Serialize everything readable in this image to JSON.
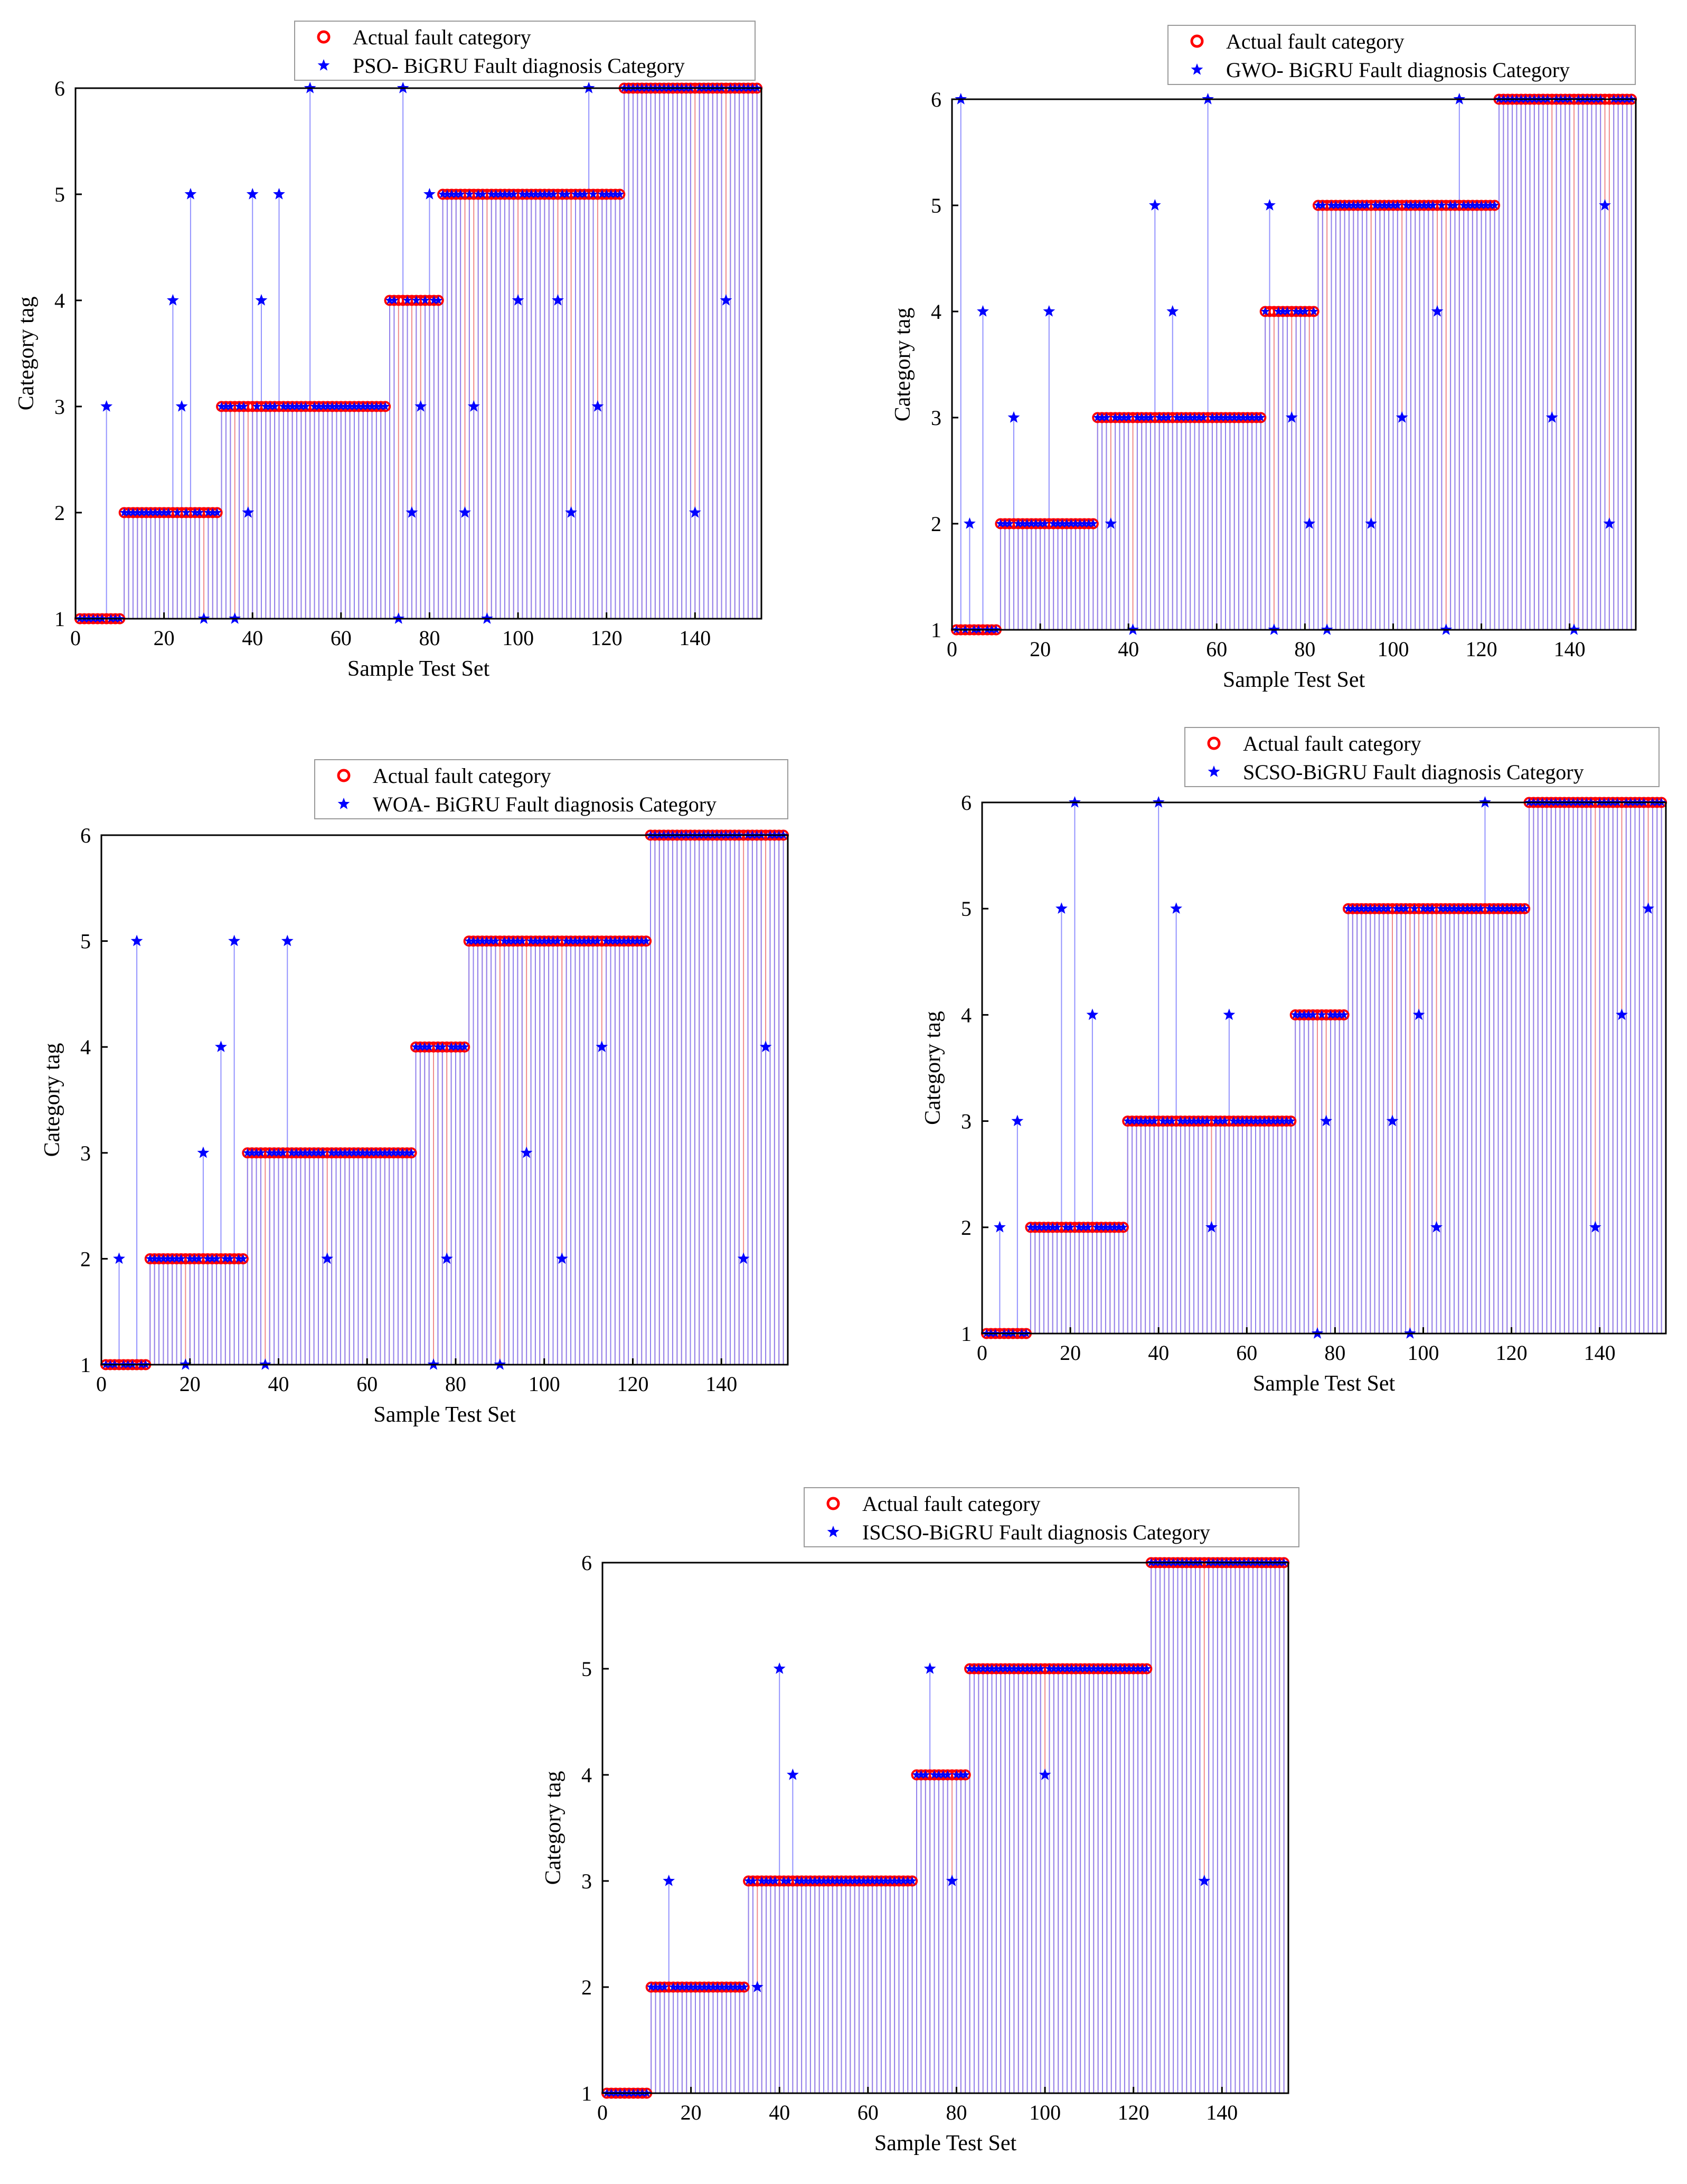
{
  "colors": {
    "actual": "#ff0000",
    "predicted": "#0000ff",
    "stem_actual": "#f08a8a",
    "stem_predicted": "#8080ff",
    "axes": "#000000"
  },
  "icons": {
    "actual_marker": "red-circle-marker-icon",
    "predicted_marker": "blue-star-marker-icon"
  },
  "chart_data": [
    {
      "id": "pso",
      "type": "scatter",
      "title": "",
      "xlabel": "Sample Test Set",
      "ylabel": "Category tag",
      "xlim": [
        0,
        155
      ],
      "ylim": [
        1,
        6
      ],
      "xticks": [
        "0",
        "20",
        "40",
        "60",
        "80",
        "100",
        "120",
        "140"
      ],
      "yticks": [
        "1",
        "2",
        "3",
        "4",
        "5",
        "6"
      ],
      "legend": [
        "Actual fault category",
        "PSO- BiGRU  Fault diagnosis Category"
      ],
      "legend_position": "top",
      "series": [
        {
          "name": "Actual fault category",
          "segments": [
            {
              "from": 1,
              "to": 11,
              "value": 1
            },
            {
              "from": 11,
              "to": 33,
              "value": 2
            },
            {
              "from": 33,
              "to": 71,
              "value": 3
            },
            {
              "from": 71,
              "to": 83,
              "value": 4
            },
            {
              "from": 83,
              "to": 124,
              "value": 5
            },
            {
              "from": 124,
              "to": 155,
              "value": 6
            }
          ]
        },
        {
          "name": "PSO- BiGRU  Fault diagnosis Category",
          "misclassified": [
            [
              7,
              3
            ],
            [
              22,
              4
            ],
            [
              24,
              3
            ],
            [
              26,
              5
            ],
            [
              29,
              1
            ],
            [
              36,
              1
            ],
            [
              39,
              2
            ],
            [
              40,
              5
            ],
            [
              42,
              4
            ],
            [
              46,
              5
            ],
            [
              53,
              6
            ],
            [
              73,
              1
            ],
            [
              74,
              6
            ],
            [
              76,
              2
            ],
            [
              78,
              3
            ],
            [
              80,
              5
            ],
            [
              88,
              2
            ],
            [
              90,
              3
            ],
            [
              93,
              1
            ],
            [
              100,
              4
            ],
            [
              109,
              4
            ],
            [
              112,
              2
            ],
            [
              116,
              6
            ],
            [
              118,
              3
            ],
            [
              140,
              2
            ],
            [
              147,
              4
            ]
          ]
        }
      ]
    },
    {
      "id": "gwo",
      "type": "scatter",
      "title": "",
      "xlabel": "Sample Test Set",
      "ylabel": "Category tag",
      "xlim": [
        0,
        155
      ],
      "ylim": [
        1,
        6
      ],
      "xticks": [
        "0",
        "20",
        "40",
        "60",
        "80",
        "100",
        "120",
        "140"
      ],
      "yticks": [
        "1",
        "2",
        "3",
        "4",
        "5",
        "6"
      ],
      "legend": [
        "Actual fault category",
        "GWO-  BiGRU  Fault diagnosis Category"
      ],
      "legend_position": "top-right",
      "series": [
        {
          "name": "Actual fault category",
          "segments": [
            {
              "from": 1,
              "to": 11,
              "value": 1
            },
            {
              "from": 11,
              "to": 33,
              "value": 2
            },
            {
              "from": 33,
              "to": 71,
              "value": 3
            },
            {
              "from": 71,
              "to": 83,
              "value": 4
            },
            {
              "from": 83,
              "to": 124,
              "value": 5
            },
            {
              "from": 124,
              "to": 155,
              "value": 6
            }
          ]
        },
        {
          "name": "GWO-  BiGRU  Fault diagnosis Category",
          "misclassified": [
            [
              2,
              6
            ],
            [
              4,
              2
            ],
            [
              7,
              4
            ],
            [
              14,
              3
            ],
            [
              22,
              4
            ],
            [
              36,
              2
            ],
            [
              41,
              1
            ],
            [
              46,
              5
            ],
            [
              50,
              4
            ],
            [
              58,
              6
            ],
            [
              72,
              5
            ],
            [
              73,
              1
            ],
            [
              77,
              3
            ],
            [
              81,
              2
            ],
            [
              85,
              1
            ],
            [
              95,
              2
            ],
            [
              102,
              3
            ],
            [
              110,
              4
            ],
            [
              112,
              1
            ],
            [
              115,
              6
            ],
            [
              136,
              3
            ],
            [
              141,
              1
            ],
            [
              148,
              5
            ],
            [
              149,
              2
            ]
          ]
        }
      ]
    },
    {
      "id": "woa",
      "type": "scatter",
      "title": "",
      "xlabel": "Sample Test Set",
      "ylabel": "Category tag",
      "xlim": [
        0,
        155
      ],
      "ylim": [
        1,
        6
      ],
      "xticks": [
        "0",
        "20",
        "40",
        "60",
        "80",
        "100",
        "120",
        "140"
      ],
      "yticks": [
        "1",
        "2",
        "3",
        "4",
        "5",
        "6"
      ],
      "legend": [
        "Actual fault category",
        "WOA-  BiGRU  Fault diagnosis Category"
      ],
      "legend_position": "top-right",
      "series": [
        {
          "name": "Actual fault category",
          "segments": [
            {
              "from": 1,
              "to": 11,
              "value": 1
            },
            {
              "from": 11,
              "to": 33,
              "value": 2
            },
            {
              "from": 33,
              "to": 71,
              "value": 3
            },
            {
              "from": 71,
              "to": 83,
              "value": 4
            },
            {
              "from": 83,
              "to": 124,
              "value": 5
            },
            {
              "from": 124,
              "to": 155,
              "value": 6
            }
          ]
        },
        {
          "name": "WOA-  BiGRU  Fault diagnosis Category",
          "misclassified": [
            [
              4,
              2
            ],
            [
              8,
              5
            ],
            [
              19,
              1
            ],
            [
              23,
              3
            ],
            [
              27,
              4
            ],
            [
              30,
              5
            ],
            [
              37,
              1
            ],
            [
              42,
              5
            ],
            [
              51,
              2
            ],
            [
              75,
              1
            ],
            [
              78,
              2
            ],
            [
              90,
              1
            ],
            [
              96,
              3
            ],
            [
              104,
              2
            ],
            [
              113,
              4
            ],
            [
              145,
              2
            ],
            [
              150,
              4
            ]
          ]
        }
      ]
    },
    {
      "id": "scso",
      "type": "scatter",
      "title": "",
      "xlabel": "Sample Test Set",
      "ylabel": "Category tag",
      "xlim": [
        0,
        155
      ],
      "ylim": [
        1,
        6
      ],
      "xticks": [
        "0",
        "20",
        "40",
        "60",
        "80",
        "100",
        "120",
        "140"
      ],
      "yticks": [
        "1",
        "2",
        "3",
        "4",
        "5",
        "6"
      ],
      "legend": [
        "Actual fault category",
        "SCSO-BiGRU  Fault diagnosis Category"
      ],
      "legend_position": "top-right",
      "series": [
        {
          "name": "Actual fault category",
          "segments": [
            {
              "from": 1,
              "to": 11,
              "value": 1
            },
            {
              "from": 11,
              "to": 33,
              "value": 2
            },
            {
              "from": 33,
              "to": 71,
              "value": 3
            },
            {
              "from": 71,
              "to": 83,
              "value": 4
            },
            {
              "from": 83,
              "to": 124,
              "value": 5
            },
            {
              "from": 124,
              "to": 155,
              "value": 6
            }
          ]
        },
        {
          "name": "SCSO-BiGRU  Fault diagnosis Category",
          "misclassified": [
            [
              4,
              2
            ],
            [
              8,
              3
            ],
            [
              18,
              5
            ],
            [
              21,
              6
            ],
            [
              25,
              4
            ],
            [
              40,
              6
            ],
            [
              44,
              5
            ],
            [
              52,
              2
            ],
            [
              56,
              4
            ],
            [
              76,
              1
            ],
            [
              78,
              3
            ],
            [
              93,
              3
            ],
            [
              97,
              1
            ],
            [
              99,
              4
            ],
            [
              103,
              2
            ],
            [
              114,
              6
            ],
            [
              139,
              2
            ],
            [
              145,
              4
            ],
            [
              151,
              5
            ]
          ]
        }
      ]
    },
    {
      "id": "iscso",
      "type": "scatter",
      "title": "",
      "xlabel": "Sample Test Set",
      "ylabel": "Category tag",
      "xlim": [
        0,
        155
      ],
      "ylim": [
        1,
        6
      ],
      "xticks": [
        "0",
        "20",
        "40",
        "60",
        "80",
        "100",
        "120",
        "140"
      ],
      "yticks": [
        "1",
        "2",
        "3",
        "4",
        "5",
        "6"
      ],
      "legend": [
        "Actual fault category",
        "ISCSO-BiGRU    Fault diagnosis Category"
      ],
      "legend_position": "top-right",
      "series": [
        {
          "name": "Actual fault category",
          "segments": [
            {
              "from": 1,
              "to": 11,
              "value": 1
            },
            {
              "from": 11,
              "to": 33,
              "value": 2
            },
            {
              "from": 33,
              "to": 71,
              "value": 3
            },
            {
              "from": 71,
              "to": 83,
              "value": 4
            },
            {
              "from": 83,
              "to": 124,
              "value": 5
            },
            {
              "from": 124,
              "to": 155,
              "value": 6
            }
          ]
        },
        {
          "name": "ISCSO-BiGRU    Fault diagnosis Category",
          "misclassified": [
            [
              15,
              3
            ],
            [
              35,
              2
            ],
            [
              40,
              5
            ],
            [
              43,
              4
            ],
            [
              74,
              5
            ],
            [
              79,
              3
            ],
            [
              100,
              4
            ],
            [
              136,
              3
            ]
          ]
        }
      ]
    }
  ]
}
